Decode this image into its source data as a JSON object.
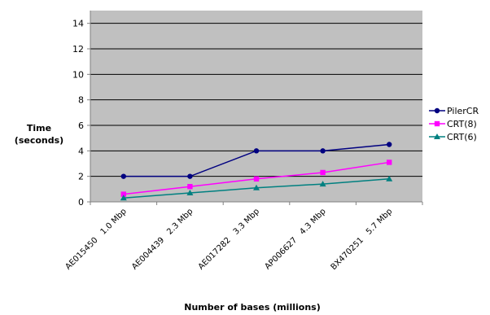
{
  "chart_data": {
    "type": "line",
    "categories": [
      "AE015450   1.0 Mbp",
      "AE004439   2.3 Mbp",
      "AE017282   3.3 Mbp",
      "AP006627   4.3 Mbp",
      "BX470251   5.7 Mbp"
    ],
    "series": [
      {
        "name": "PilerCR",
        "values": [
          2,
          2,
          4,
          4,
          4.5
        ],
        "color": "#000080",
        "marker": "circle"
      },
      {
        "name": "CRT(8)",
        "values": [
          0.6,
          1.2,
          1.8,
          2.3,
          3.1
        ],
        "color": "#ff00ff",
        "marker": "square"
      },
      {
        "name": "CRT(6)",
        "values": [
          0.3,
          0.7,
          1.1,
          1.4,
          1.8
        ],
        "color": "#008080",
        "marker": "triangle"
      }
    ],
    "ylabel_line1": "Time",
    "ylabel_line2": "(seconds)",
    "xlabel": "Number of bases (millions)",
    "ylim": [
      0,
      15
    ],
    "yticks": [
      0,
      2,
      4,
      6,
      8,
      10,
      12,
      14
    ],
    "grid": true,
    "plot_background": "#c0c0c0",
    "legend_position": "right"
  }
}
